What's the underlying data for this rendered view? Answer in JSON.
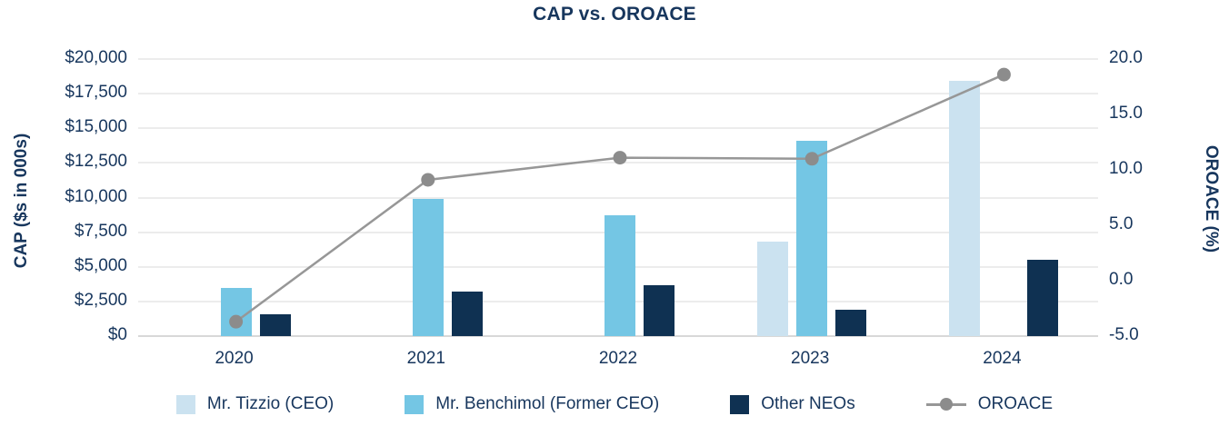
{
  "title": "CAP vs. OROACE",
  "axes": {
    "left_title": "CAP ($s in 000s)",
    "right_title": "OROACE (%)",
    "left_ticks": [
      "$20,000",
      "$17,500",
      "$15,000",
      "$12,500",
      "$10,000",
      "$7,500",
      "$5,000",
      "$2,500",
      "$0"
    ],
    "right_ticks": [
      "20.0",
      "15.0",
      "10.0",
      "5.0",
      "0.0",
      "-5.0"
    ],
    "x_ticks": [
      "2020",
      "2021",
      "2022",
      "2023",
      "2024"
    ]
  },
  "colors": {
    "tizzio": "#CBE2F0",
    "benchimol": "#74C6E4",
    "other_neos": "#0F3152",
    "oroace_line": "#979797",
    "oroace_marker": "#8C8C8C",
    "text": "#17365D",
    "gridline": "#ECECEC"
  },
  "legend": [
    {
      "label": "Mr. Tizzio (CEO)",
      "swatch": "square",
      "color": "#CBE2F0"
    },
    {
      "label": "Mr. Benchimol (Former CEO)",
      "swatch": "square",
      "color": "#74C6E4"
    },
    {
      "label": "Other NEOs",
      "swatch": "square",
      "color": "#0F3152"
    },
    {
      "label": "OROACE",
      "swatch": "line",
      "color": "#979797"
    }
  ],
  "chart_data": {
    "type": "bar",
    "subtype": "combo-bar-line-dual-axis",
    "title": "CAP vs. OROACE",
    "categories": [
      "2020",
      "2021",
      "2022",
      "2023",
      "2024"
    ],
    "series": [
      {
        "name": "Mr. Tizzio (CEO)",
        "type": "bar",
        "axis": "left",
        "color": "#CBE2F0",
        "values": [
          null,
          null,
          null,
          6800,
          18400
        ]
      },
      {
        "name": "Mr. Benchimol (Former CEO)",
        "type": "bar",
        "axis": "left",
        "color": "#74C6E4",
        "values": [
          3500,
          9900,
          8700,
          14100,
          null
        ]
      },
      {
        "name": "Other NEOs",
        "type": "bar",
        "axis": "left",
        "color": "#0F3152",
        "values": [
          1600,
          3200,
          3700,
          1900,
          5500
        ]
      },
      {
        "name": "OROACE",
        "type": "line",
        "axis": "right",
        "color": "#979797",
        "values": [
          -3.7,
          9.1,
          11.1,
          11.0,
          18.6
        ]
      }
    ],
    "left_axis": {
      "label": "CAP ($s in 000s)",
      "min": 0,
      "max": 20000,
      "step": 2500,
      "tick_format": "$#,##0"
    },
    "right_axis": {
      "label": "OROACE (%)",
      "min": -5.0,
      "max": 20.0,
      "step": 5.0,
      "tick_format": "0.0"
    },
    "grid": true,
    "legend_position": "bottom"
  }
}
